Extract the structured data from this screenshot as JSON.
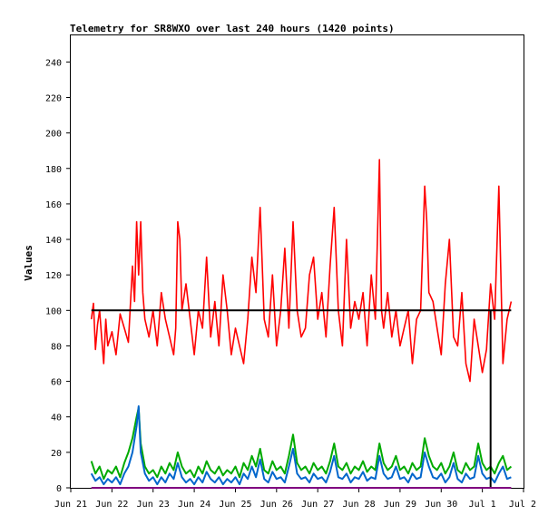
{
  "chart_data": {
    "type": "line",
    "title": "Telemetry for SR8WXO over last 240 hours (1420 points)",
    "ylabel": "Values",
    "xlabel": "",
    "ylim": [
      0,
      255
    ],
    "yticks": [
      0,
      20,
      40,
      60,
      80,
      100,
      120,
      140,
      160,
      180,
      200,
      220,
      240
    ],
    "xticks": [
      "Jun 21",
      "Jun 22",
      "Jun 23",
      "Jun 24",
      "Jun 25",
      "Jun 26",
      "Jun 27",
      "Jun 28",
      "Jun 29",
      "Jun 30",
      "Jul 1",
      "Jul 2"
    ],
    "x_range_days": [
      0,
      11
    ],
    "series": [
      {
        "color": "#ff0000",
        "points": [
          [
            0.5,
            95
          ],
          [
            0.55,
            104
          ],
          [
            0.6,
            78
          ],
          [
            0.65,
            92
          ],
          [
            0.7,
            100
          ],
          [
            0.75,
            85
          ],
          [
            0.8,
            70
          ],
          [
            0.85,
            95
          ],
          [
            0.9,
            80
          ],
          [
            1.0,
            88
          ],
          [
            1.1,
            75
          ],
          [
            1.2,
            98
          ],
          [
            1.3,
            90
          ],
          [
            1.4,
            82
          ],
          [
            1.5,
            125
          ],
          [
            1.55,
            105
          ],
          [
            1.6,
            150
          ],
          [
            1.65,
            120
          ],
          [
            1.7,
            150
          ],
          [
            1.75,
            110
          ],
          [
            1.8,
            95
          ],
          [
            1.9,
            85
          ],
          [
            2.0,
            100
          ],
          [
            2.1,
            80
          ],
          [
            2.2,
            110
          ],
          [
            2.3,
            95
          ],
          [
            2.4,
            85
          ],
          [
            2.5,
            75
          ],
          [
            2.55,
            90
          ],
          [
            2.6,
            150
          ],
          [
            2.65,
            140
          ],
          [
            2.7,
            100
          ],
          [
            2.8,
            115
          ],
          [
            2.9,
            95
          ],
          [
            3.0,
            75
          ],
          [
            3.1,
            100
          ],
          [
            3.2,
            90
          ],
          [
            3.3,
            130
          ],
          [
            3.4,
            85
          ],
          [
            3.5,
            105
          ],
          [
            3.6,
            80
          ],
          [
            3.7,
            120
          ],
          [
            3.8,
            100
          ],
          [
            3.9,
            75
          ],
          [
            4.0,
            90
          ],
          [
            4.1,
            80
          ],
          [
            4.2,
            70
          ],
          [
            4.3,
            95
          ],
          [
            4.4,
            130
          ],
          [
            4.5,
            110
          ],
          [
            4.6,
            158
          ],
          [
            4.7,
            95
          ],
          [
            4.8,
            85
          ],
          [
            4.9,
            120
          ],
          [
            5.0,
            80
          ],
          [
            5.1,
            100
          ],
          [
            5.2,
            135
          ],
          [
            5.3,
            90
          ],
          [
            5.4,
            150
          ],
          [
            5.5,
            100
          ],
          [
            5.6,
            85
          ],
          [
            5.7,
            90
          ],
          [
            5.8,
            120
          ],
          [
            5.9,
            130
          ],
          [
            6.0,
            95
          ],
          [
            6.1,
            110
          ],
          [
            6.2,
            85
          ],
          [
            6.3,
            125
          ],
          [
            6.4,
            158
          ],
          [
            6.5,
            100
          ],
          [
            6.6,
            80
          ],
          [
            6.7,
            140
          ],
          [
            6.8,
            90
          ],
          [
            6.9,
            105
          ],
          [
            7.0,
            95
          ],
          [
            7.1,
            110
          ],
          [
            7.2,
            80
          ],
          [
            7.3,
            120
          ],
          [
            7.4,
            95
          ],
          [
            7.5,
            185
          ],
          [
            7.55,
            100
          ],
          [
            7.6,
            90
          ],
          [
            7.7,
            110
          ],
          [
            7.8,
            85
          ],
          [
            7.9,
            100
          ],
          [
            8.0,
            80
          ],
          [
            8.1,
            90
          ],
          [
            8.2,
            100
          ],
          [
            8.3,
            70
          ],
          [
            8.4,
            95
          ],
          [
            8.5,
            100
          ],
          [
            8.6,
            170
          ],
          [
            8.65,
            150
          ],
          [
            8.7,
            110
          ],
          [
            8.8,
            105
          ],
          [
            8.9,
            90
          ],
          [
            9.0,
            75
          ],
          [
            9.1,
            115
          ],
          [
            9.2,
            140
          ],
          [
            9.3,
            85
          ],
          [
            9.4,
            80
          ],
          [
            9.5,
            110
          ],
          [
            9.6,
            70
          ],
          [
            9.7,
            60
          ],
          [
            9.8,
            95
          ],
          [
            9.9,
            80
          ],
          [
            10.0,
            65
          ],
          [
            10.1,
            78
          ],
          [
            10.2,
            115
          ],
          [
            10.3,
            95
          ],
          [
            10.4,
            170
          ],
          [
            10.5,
            70
          ],
          [
            10.6,
            95
          ],
          [
            10.7,
            105
          ]
        ]
      },
      {
        "color": "#00aa00",
        "points": [
          [
            0.5,
            15
          ],
          [
            0.6,
            8
          ],
          [
            0.7,
            12
          ],
          [
            0.8,
            5
          ],
          [
            0.9,
            10
          ],
          [
            1.0,
            8
          ],
          [
            1.1,
            12
          ],
          [
            1.2,
            6
          ],
          [
            1.3,
            14
          ],
          [
            1.4,
            20
          ],
          [
            1.5,
            28
          ],
          [
            1.6,
            40
          ],
          [
            1.65,
            45
          ],
          [
            1.7,
            25
          ],
          [
            1.8,
            12
          ],
          [
            1.9,
            8
          ],
          [
            2.0,
            10
          ],
          [
            2.1,
            6
          ],
          [
            2.2,
            12
          ],
          [
            2.3,
            8
          ],
          [
            2.4,
            14
          ],
          [
            2.5,
            10
          ],
          [
            2.6,
            20
          ],
          [
            2.7,
            12
          ],
          [
            2.8,
            8
          ],
          [
            2.9,
            10
          ],
          [
            3.0,
            6
          ],
          [
            3.1,
            12
          ],
          [
            3.2,
            8
          ],
          [
            3.3,
            15
          ],
          [
            3.4,
            10
          ],
          [
            3.5,
            8
          ],
          [
            3.6,
            12
          ],
          [
            3.7,
            7
          ],
          [
            3.8,
            10
          ],
          [
            3.9,
            8
          ],
          [
            4.0,
            12
          ],
          [
            4.1,
            6
          ],
          [
            4.2,
            14
          ],
          [
            4.3,
            10
          ],
          [
            4.4,
            18
          ],
          [
            4.5,
            12
          ],
          [
            4.6,
            22
          ],
          [
            4.7,
            10
          ],
          [
            4.8,
            8
          ],
          [
            4.9,
            15
          ],
          [
            5.0,
            10
          ],
          [
            5.1,
            12
          ],
          [
            5.2,
            8
          ],
          [
            5.3,
            18
          ],
          [
            5.4,
            30
          ],
          [
            5.5,
            14
          ],
          [
            5.6,
            10
          ],
          [
            5.7,
            12
          ],
          [
            5.8,
            8
          ],
          [
            5.9,
            14
          ],
          [
            6.0,
            10
          ],
          [
            6.1,
            12
          ],
          [
            6.2,
            8
          ],
          [
            6.3,
            15
          ],
          [
            6.4,
            25
          ],
          [
            6.5,
            12
          ],
          [
            6.6,
            10
          ],
          [
            6.7,
            14
          ],
          [
            6.8,
            8
          ],
          [
            6.9,
            12
          ],
          [
            7.0,
            10
          ],
          [
            7.1,
            15
          ],
          [
            7.2,
            9
          ],
          [
            7.3,
            12
          ],
          [
            7.4,
            10
          ],
          [
            7.5,
            25
          ],
          [
            7.6,
            14
          ],
          [
            7.7,
            10
          ],
          [
            7.8,
            12
          ],
          [
            7.9,
            18
          ],
          [
            8.0,
            10
          ],
          [
            8.1,
            12
          ],
          [
            8.2,
            8
          ],
          [
            8.3,
            14
          ],
          [
            8.4,
            10
          ],
          [
            8.5,
            12
          ],
          [
            8.6,
            28
          ],
          [
            8.7,
            18
          ],
          [
            8.8,
            12
          ],
          [
            8.9,
            10
          ],
          [
            9.0,
            14
          ],
          [
            9.1,
            8
          ],
          [
            9.2,
            12
          ],
          [
            9.3,
            20
          ],
          [
            9.4,
            10
          ],
          [
            9.5,
            8
          ],
          [
            9.6,
            14
          ],
          [
            9.7,
            10
          ],
          [
            9.8,
            12
          ],
          [
            9.9,
            25
          ],
          [
            10.0,
            14
          ],
          [
            10.1,
            10
          ],
          [
            10.2,
            12
          ],
          [
            10.3,
            8
          ],
          [
            10.4,
            14
          ],
          [
            10.5,
            18
          ],
          [
            10.6,
            10
          ],
          [
            10.7,
            12
          ]
        ]
      },
      {
        "color": "#0066cc",
        "points": [
          [
            0.5,
            8
          ],
          [
            0.6,
            4
          ],
          [
            0.7,
            6
          ],
          [
            0.8,
            2
          ],
          [
            0.9,
            5
          ],
          [
            1.0,
            3
          ],
          [
            1.1,
            6
          ],
          [
            1.2,
            2
          ],
          [
            1.3,
            8
          ],
          [
            1.4,
            12
          ],
          [
            1.5,
            20
          ],
          [
            1.6,
            35
          ],
          [
            1.65,
            46
          ],
          [
            1.7,
            20
          ],
          [
            1.8,
            8
          ],
          [
            1.9,
            4
          ],
          [
            2.0,
            6
          ],
          [
            2.1,
            2
          ],
          [
            2.2,
            6
          ],
          [
            2.3,
            3
          ],
          [
            2.4,
            8
          ],
          [
            2.5,
            5
          ],
          [
            2.6,
            14
          ],
          [
            2.7,
            6
          ],
          [
            2.8,
            3
          ],
          [
            2.9,
            5
          ],
          [
            3.0,
            2
          ],
          [
            3.1,
            6
          ],
          [
            3.2,
            3
          ],
          [
            3.3,
            9
          ],
          [
            3.4,
            5
          ],
          [
            3.5,
            3
          ],
          [
            3.6,
            6
          ],
          [
            3.7,
            2
          ],
          [
            3.8,
            5
          ],
          [
            3.9,
            3
          ],
          [
            4.0,
            6
          ],
          [
            4.1,
            2
          ],
          [
            4.2,
            8
          ],
          [
            4.3,
            5
          ],
          [
            4.4,
            12
          ],
          [
            4.5,
            6
          ],
          [
            4.6,
            16
          ],
          [
            4.7,
            5
          ],
          [
            4.8,
            3
          ],
          [
            4.9,
            9
          ],
          [
            5.0,
            5
          ],
          [
            5.1,
            6
          ],
          [
            5.2,
            3
          ],
          [
            5.3,
            12
          ],
          [
            5.4,
            22
          ],
          [
            5.5,
            8
          ],
          [
            5.6,
            5
          ],
          [
            5.7,
            6
          ],
          [
            5.8,
            3
          ],
          [
            5.9,
            8
          ],
          [
            6.0,
            5
          ],
          [
            6.1,
            6
          ],
          [
            6.2,
            3
          ],
          [
            6.3,
            9
          ],
          [
            6.4,
            18
          ],
          [
            6.5,
            6
          ],
          [
            6.6,
            5
          ],
          [
            6.7,
            8
          ],
          [
            6.8,
            3
          ],
          [
            6.9,
            6
          ],
          [
            7.0,
            5
          ],
          [
            7.1,
            9
          ],
          [
            7.2,
            4
          ],
          [
            7.3,
            6
          ],
          [
            7.4,
            5
          ],
          [
            7.5,
            18
          ],
          [
            7.6,
            8
          ],
          [
            7.7,
            5
          ],
          [
            7.8,
            6
          ],
          [
            7.9,
            12
          ],
          [
            8.0,
            5
          ],
          [
            8.1,
            6
          ],
          [
            8.2,
            3
          ],
          [
            8.3,
            8
          ],
          [
            8.4,
            5
          ],
          [
            8.5,
            6
          ],
          [
            8.6,
            20
          ],
          [
            8.7,
            12
          ],
          [
            8.8,
            6
          ],
          [
            8.9,
            5
          ],
          [
            9.0,
            8
          ],
          [
            9.1,
            3
          ],
          [
            9.2,
            6
          ],
          [
            9.3,
            14
          ],
          [
            9.4,
            5
          ],
          [
            9.5,
            3
          ],
          [
            9.6,
            8
          ],
          [
            9.7,
            5
          ],
          [
            9.8,
            6
          ],
          [
            9.9,
            18
          ],
          [
            10.0,
            8
          ],
          [
            10.1,
            5
          ],
          [
            10.2,
            6
          ],
          [
            10.3,
            3
          ],
          [
            10.4,
            8
          ],
          [
            10.5,
            12
          ],
          [
            10.6,
            5
          ],
          [
            10.7,
            6
          ]
        ]
      },
      {
        "color": "#000000",
        "points": [
          [
            0.5,
            100
          ],
          [
            10.7,
            100
          ]
        ]
      },
      {
        "color": "#000000",
        "points": [
          [
            10.2,
            100
          ],
          [
            10.2,
            0
          ]
        ]
      },
      {
        "color": "#800080",
        "points": [
          [
            0.5,
            0
          ],
          [
            10.7,
            0
          ]
        ]
      }
    ]
  }
}
